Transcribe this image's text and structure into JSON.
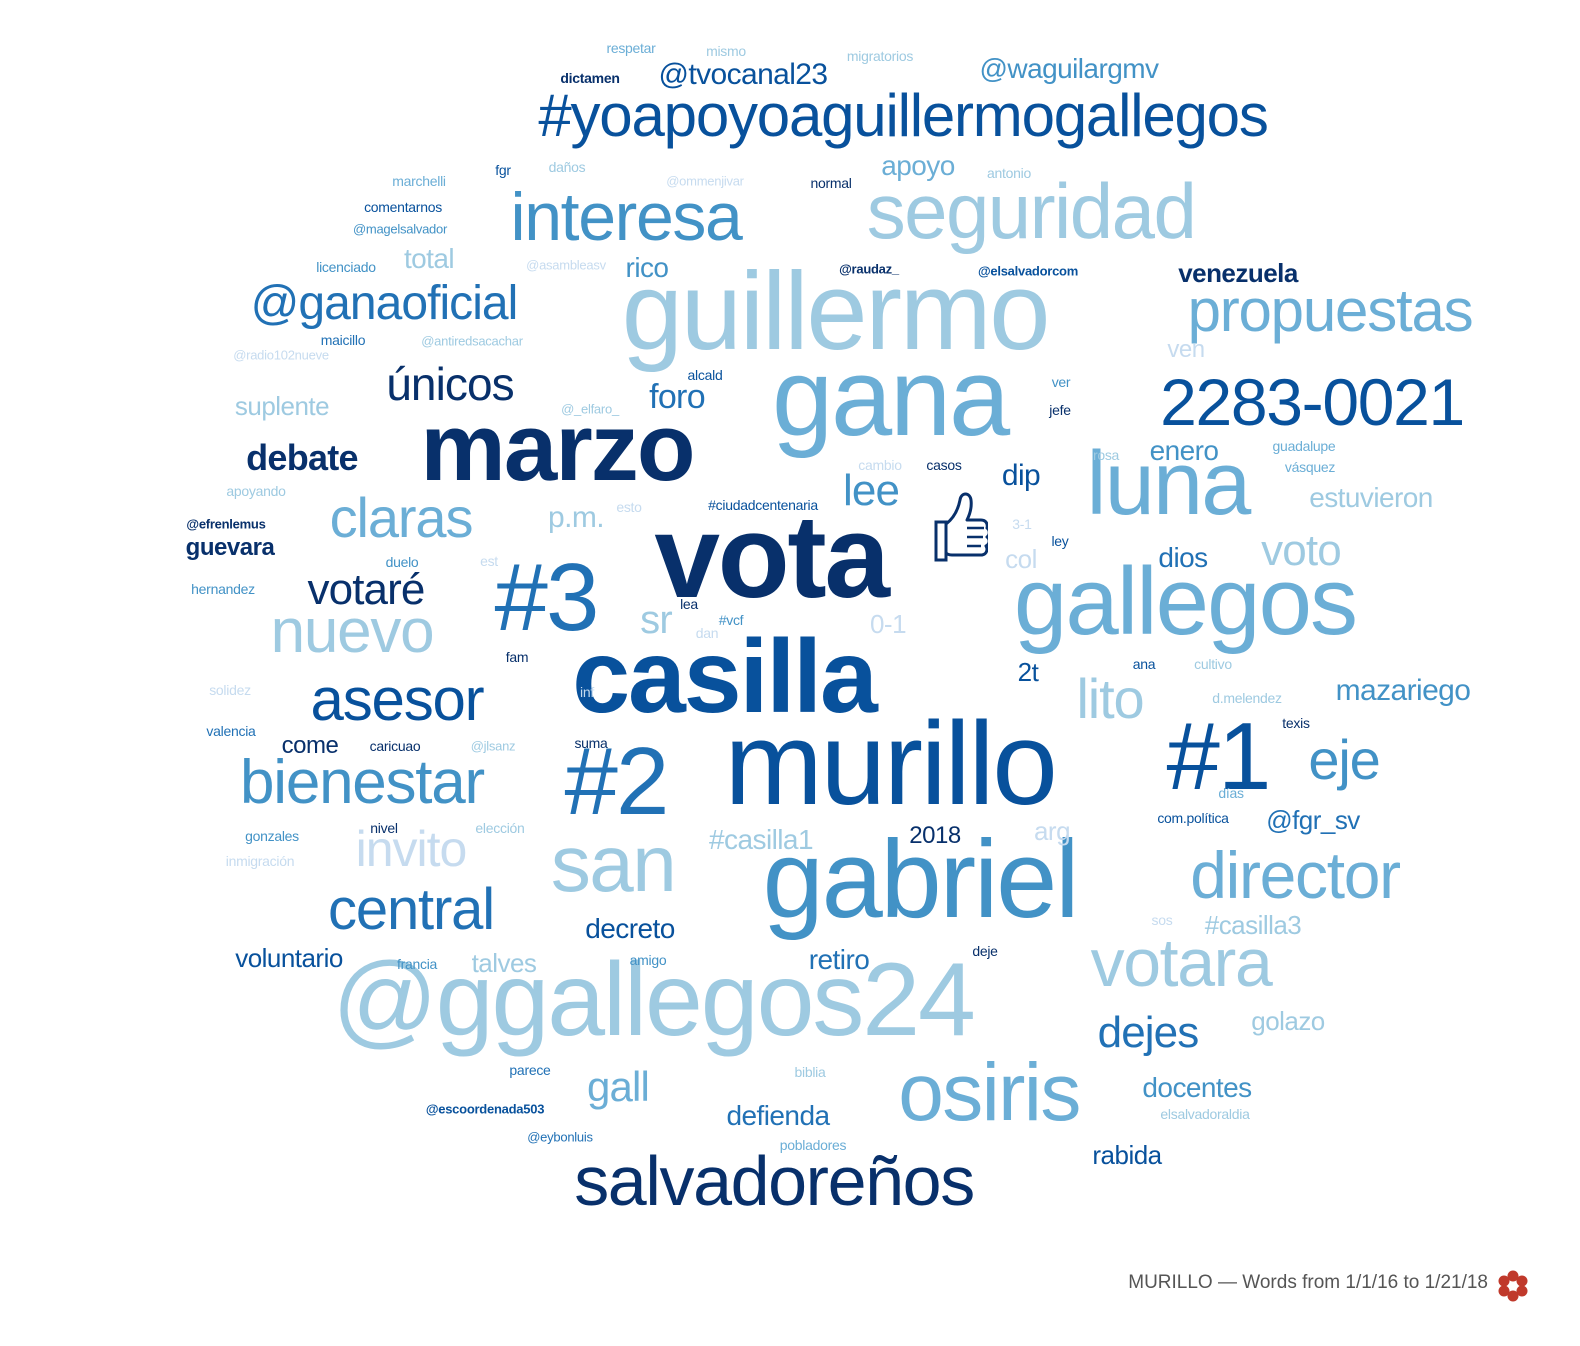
{
  "colors": {
    "c0": "#08306b",
    "c1": "#08519c",
    "c2": "#2171b5",
    "c3": "#4292c6",
    "c4": "#6baed6",
    "c5": "#9ecae1",
    "c6": "#c6dbef"
  },
  "icon": "thumbs-up-icon",
  "footer": {
    "caption": "MURILLO — Words from 1/1/16 to 1/21/18",
    "logo": "flower-logo-icon"
  },
  "words": [
    {
      "text": "#yoapoyoaguillermogallegos",
      "size": 60,
      "color": "c1",
      "weight": "normal"
    },
    {
      "text": "guillermo",
      "size": 110,
      "color": "c5",
      "weight": "normal"
    },
    {
      "text": "gana",
      "size": 110,
      "color": "c4",
      "weight": "normal"
    },
    {
      "text": "marzo",
      "size": 96,
      "color": "c0",
      "weight": "bold"
    },
    {
      "text": "vota",
      "size": 118,
      "color": "c0",
      "weight": "bold"
    },
    {
      "text": "murillo",
      "size": 118,
      "color": "c1",
      "weight": "normal"
    },
    {
      "text": "casilla",
      "size": 104,
      "color": "c1",
      "weight": "bold"
    },
    {
      "text": "gabriel",
      "size": 110,
      "color": "c3",
      "weight": "normal"
    },
    {
      "text": "@ggallegos24",
      "size": 104,
      "color": "c5",
      "weight": "normal"
    },
    {
      "text": "gallegos",
      "size": 96,
      "color": "c4",
      "weight": "normal"
    },
    {
      "text": "luna",
      "size": 90,
      "color": "c4",
      "weight": "normal"
    },
    {
      "text": "#1",
      "size": 96,
      "color": "c1",
      "weight": "normal"
    },
    {
      "text": "#2",
      "size": 96,
      "color": "c2",
      "weight": "normal"
    },
    {
      "text": "#3",
      "size": 96,
      "color": "c2",
      "weight": "normal"
    },
    {
      "text": "seguridad",
      "size": 78,
      "color": "c5",
      "weight": "normal"
    },
    {
      "text": "interesa",
      "size": 68,
      "color": "c3",
      "weight": "normal"
    },
    {
      "text": "2283-0021",
      "size": 66,
      "color": "c1",
      "weight": "normal"
    },
    {
      "text": "propuestas",
      "size": 60,
      "color": "c4",
      "weight": "normal"
    },
    {
      "text": "salvadoreños",
      "size": 70,
      "color": "c0",
      "weight": "normal"
    },
    {
      "text": "osiris",
      "size": 82,
      "color": "c4",
      "weight": "normal"
    },
    {
      "text": "votara",
      "size": 68,
      "color": "c5",
      "weight": "normal"
    },
    {
      "text": "director",
      "size": 66,
      "color": "c4",
      "weight": "normal"
    },
    {
      "text": "san",
      "size": 80,
      "color": "c5",
      "weight": "normal"
    },
    {
      "text": "bienestar",
      "size": 62,
      "color": "c3",
      "weight": "normal"
    },
    {
      "text": "central",
      "size": 58,
      "color": "c2",
      "weight": "normal"
    },
    {
      "text": "asesor",
      "size": 60,
      "color": "c1",
      "weight": "normal"
    },
    {
      "text": "nuevo",
      "size": 62,
      "color": "c5",
      "weight": "normal"
    },
    {
      "text": "claras",
      "size": 56,
      "color": "c4",
      "weight": "normal"
    },
    {
      "text": "@ganaoficial",
      "size": 48,
      "color": "c2",
      "weight": "normal"
    },
    {
      "text": "únicos",
      "size": 46,
      "color": "c0",
      "weight": "normal"
    },
    {
      "text": "votaré",
      "size": 44,
      "color": "c0",
      "weight": "normal"
    },
    {
      "text": "invito",
      "size": 50,
      "color": "c6",
      "weight": "normal"
    },
    {
      "text": "lito",
      "size": 56,
      "color": "c5",
      "weight": "normal"
    },
    {
      "text": "eje",
      "size": 56,
      "color": "c3",
      "weight": "normal"
    },
    {
      "text": "lee",
      "size": 44,
      "color": "c3",
      "weight": "normal"
    },
    {
      "text": "voto",
      "size": 44,
      "color": "c5",
      "weight": "normal"
    },
    {
      "text": "sr",
      "size": 40,
      "color": "c5",
      "weight": "normal"
    },
    {
      "text": "dejes",
      "size": 44,
      "color": "c2",
      "weight": "normal"
    },
    {
      "text": "gall",
      "size": 42,
      "color": "c4",
      "weight": "normal"
    },
    {
      "text": "debate",
      "size": 36,
      "color": "c0",
      "weight": "bold"
    },
    {
      "text": "p.m.",
      "size": 30,
      "color": "c5",
      "weight": "normal"
    },
    {
      "text": "foro",
      "size": 34,
      "color": "c2",
      "weight": "normal"
    },
    {
      "text": "mazariego",
      "size": 30,
      "color": "c3",
      "weight": "normal"
    },
    {
      "text": "@tvocanal23",
      "size": 30,
      "color": "c1",
      "weight": "normal"
    },
    {
      "text": "@waguilargmv",
      "size": 28,
      "color": "c3",
      "weight": "normal"
    },
    {
      "text": "apoyo",
      "size": 28,
      "color": "c4",
      "weight": "normal"
    },
    {
      "text": "total",
      "size": 28,
      "color": "c5",
      "weight": "normal"
    },
    {
      "text": "rico",
      "size": 28,
      "color": "c3",
      "weight": "normal"
    },
    {
      "text": "venezuela",
      "size": 26,
      "color": "c0",
      "weight": "bold"
    },
    {
      "text": "ven",
      "size": 24,
      "color": "c6",
      "weight": "normal"
    },
    {
      "text": "suplente",
      "size": 26,
      "color": "c5",
      "weight": "normal"
    },
    {
      "text": "enero",
      "size": 28,
      "color": "c3",
      "weight": "normal"
    },
    {
      "text": "estuvieron",
      "size": 28,
      "color": "c5",
      "weight": "normal"
    },
    {
      "text": "dip",
      "size": 30,
      "color": "c1",
      "weight": "normal"
    },
    {
      "text": "guevara",
      "size": 24,
      "color": "c0",
      "weight": "bold"
    },
    {
      "text": "col",
      "size": 26,
      "color": "c6",
      "weight": "normal"
    },
    {
      "text": "dios",
      "size": 28,
      "color": "c2",
      "weight": "normal"
    },
    {
      "text": "0-1",
      "size": 26,
      "color": "c6",
      "weight": "normal"
    },
    {
      "text": "2t",
      "size": 26,
      "color": "c1",
      "weight": "normal"
    },
    {
      "text": "come",
      "size": 24,
      "color": "c0",
      "weight": "normal"
    },
    {
      "text": "#casilla1",
      "size": 28,
      "color": "c5",
      "weight": "normal"
    },
    {
      "text": "2018",
      "size": 24,
      "color": "c0",
      "weight": "normal"
    },
    {
      "text": "arg",
      "size": 26,
      "color": "c6",
      "weight": "normal"
    },
    {
      "text": "@fgr_sv",
      "size": 26,
      "color": "c2",
      "weight": "normal"
    },
    {
      "text": "decreto",
      "size": 28,
      "color": "c1",
      "weight": "normal"
    },
    {
      "text": "voluntario",
      "size": 26,
      "color": "c1",
      "weight": "normal"
    },
    {
      "text": "talves",
      "size": 26,
      "color": "c5",
      "weight": "normal"
    },
    {
      "text": "retiro",
      "size": 28,
      "color": "c2",
      "weight": "normal"
    },
    {
      "text": "#casilla3",
      "size": 26,
      "color": "c5",
      "weight": "normal"
    },
    {
      "text": "golazo",
      "size": 26,
      "color": "c5",
      "weight": "normal"
    },
    {
      "text": "docentes",
      "size": 28,
      "color": "c3",
      "weight": "normal"
    },
    {
      "text": "defienda",
      "size": 28,
      "color": "c2",
      "weight": "normal"
    },
    {
      "text": "rabida",
      "size": 26,
      "color": "c1",
      "weight": "normal"
    },
    {
      "text": "respetar",
      "size": 14,
      "color": "c4",
      "weight": "normal"
    },
    {
      "text": "mismo",
      "size": 14,
      "color": "c5",
      "weight": "normal"
    },
    {
      "text": "migratorios",
      "size": 14,
      "color": "c5",
      "weight": "normal"
    },
    {
      "text": "dictamen",
      "size": 14,
      "color": "c0",
      "weight": "bold"
    },
    {
      "text": "fgr",
      "size": 14,
      "color": "c1",
      "weight": "normal"
    },
    {
      "text": "daños",
      "size": 14,
      "color": "c5",
      "weight": "normal"
    },
    {
      "text": "marchelli",
      "size": 14,
      "color": "c4",
      "weight": "normal"
    },
    {
      "text": "@ommenjivar",
      "size": 13,
      "color": "c6",
      "weight": "normal"
    },
    {
      "text": "normal",
      "size": 14,
      "color": "c0",
      "weight": "normal"
    },
    {
      "text": "antonio",
      "size": 14,
      "color": "c5",
      "weight": "normal"
    },
    {
      "text": "comentarnos",
      "size": 14,
      "color": "c1",
      "weight": "normal"
    },
    {
      "text": "@magelsalvador",
      "size": 13,
      "color": "c3",
      "weight": "normal"
    },
    {
      "text": "licenciado",
      "size": 14,
      "color": "c3",
      "weight": "normal"
    },
    {
      "text": "@asambleasv",
      "size": 13,
      "color": "c6",
      "weight": "normal"
    },
    {
      "text": "@raudaz_",
      "size": 13,
      "color": "c0",
      "weight": "bold"
    },
    {
      "text": "@elsalvadorcom",
      "size": 13,
      "color": "c1",
      "weight": "bold"
    },
    {
      "text": "maicillo",
      "size": 14,
      "color": "c2",
      "weight": "normal"
    },
    {
      "text": "@antiredsacachar",
      "size": 13,
      "color": "c5",
      "weight": "normal"
    },
    {
      "text": "@radio102nueve",
      "size": 13,
      "color": "c6",
      "weight": "normal"
    },
    {
      "text": "alcald",
      "size": 14,
      "color": "c1",
      "weight": "normal"
    },
    {
      "text": "@_elfaro_",
      "size": 13,
      "color": "c5",
      "weight": "normal"
    },
    {
      "text": "ver",
      "size": 14,
      "color": "c3",
      "weight": "normal"
    },
    {
      "text": "jefe",
      "size": 14,
      "color": "c0",
      "weight": "normal"
    },
    {
      "text": "guadalupe",
      "size": 14,
      "color": "c4",
      "weight": "normal"
    },
    {
      "text": "rosa",
      "size": 14,
      "color": "c5",
      "weight": "normal"
    },
    {
      "text": "vásquez",
      "size": 14,
      "color": "c4",
      "weight": "normal"
    },
    {
      "text": "cambio",
      "size": 14,
      "color": "c6",
      "weight": "normal"
    },
    {
      "text": "casos",
      "size": 14,
      "color": "c0",
      "weight": "normal"
    },
    {
      "text": "apoyando",
      "size": 14,
      "color": "c5",
      "weight": "normal"
    },
    {
      "text": "@efrenlemus",
      "size": 13,
      "color": "c0",
      "weight": "bold"
    },
    {
      "text": "esto",
      "size": 14,
      "color": "c6",
      "weight": "normal"
    },
    {
      "text": "#ciudadcentenaria",
      "size": 14,
      "color": "c1",
      "weight": "normal"
    },
    {
      "text": "3-1",
      "size": 14,
      "color": "c6",
      "weight": "normal"
    },
    {
      "text": "ley",
      "size": 14,
      "color": "c1",
      "weight": "normal"
    },
    {
      "text": "duelo",
      "size": 14,
      "color": "c3",
      "weight": "normal"
    },
    {
      "text": "est",
      "size": 14,
      "color": "c6",
      "weight": "normal"
    },
    {
      "text": "hernandez",
      "size": 14,
      "color": "c3",
      "weight": "normal"
    },
    {
      "text": "lea",
      "size": 14,
      "color": "c0",
      "weight": "normal"
    },
    {
      "text": "#vcf",
      "size": 14,
      "color": "c3",
      "weight": "normal"
    },
    {
      "text": "dan",
      "size": 14,
      "color": "c6",
      "weight": "normal"
    },
    {
      "text": "fam",
      "size": 14,
      "color": "c0",
      "weight": "normal"
    },
    {
      "text": "ana",
      "size": 14,
      "color": "c1",
      "weight": "normal"
    },
    {
      "text": "cultivo",
      "size": 14,
      "color": "c5",
      "weight": "normal"
    },
    {
      "text": "solidez",
      "size": 14,
      "color": "c6",
      "weight": "normal"
    },
    {
      "text": "inf",
      "size": 14,
      "color": "c6",
      "weight": "normal"
    },
    {
      "text": "d.melendez",
      "size": 14,
      "color": "c5",
      "weight": "normal"
    },
    {
      "text": "valencia",
      "size": 14,
      "color": "c2",
      "weight": "normal"
    },
    {
      "text": "texis",
      "size": 14,
      "color": "c0",
      "weight": "normal"
    },
    {
      "text": "caricuao",
      "size": 14,
      "color": "c0",
      "weight": "normal"
    },
    {
      "text": "@jlsanz",
      "size": 13,
      "color": "c5",
      "weight": "normal"
    },
    {
      "text": "suma",
      "size": 14,
      "color": "c0",
      "weight": "normal"
    },
    {
      "text": "días",
      "size": 14,
      "color": "c4",
      "weight": "normal"
    },
    {
      "text": "gonzales",
      "size": 14,
      "color": "c3",
      "weight": "normal"
    },
    {
      "text": "nivel",
      "size": 14,
      "color": "c0",
      "weight": "normal"
    },
    {
      "text": "elección",
      "size": 14,
      "color": "c5",
      "weight": "normal"
    },
    {
      "text": "com.política",
      "size": 14,
      "color": "c1",
      "weight": "normal"
    },
    {
      "text": "inmigración",
      "size": 14,
      "color": "c6",
      "weight": "normal"
    },
    {
      "text": "sos",
      "size": 14,
      "color": "c6",
      "weight": "normal"
    },
    {
      "text": "deje",
      "size": 14,
      "color": "c0",
      "weight": "normal"
    },
    {
      "text": "francia",
      "size": 14,
      "color": "c3",
      "weight": "normal"
    },
    {
      "text": "amigo",
      "size": 14,
      "color": "c3",
      "weight": "normal"
    },
    {
      "text": "parece",
      "size": 14,
      "color": "c2",
      "weight": "normal"
    },
    {
      "text": "biblia",
      "size": 14,
      "color": "c5",
      "weight": "normal"
    },
    {
      "text": "@escoordenada503",
      "size": 13,
      "color": "c1",
      "weight": "bold"
    },
    {
      "text": "elsalvadoraldia",
      "size": 14,
      "color": "c5",
      "weight": "normal"
    },
    {
      "text": "@eybonluis",
      "size": 13,
      "color": "c2",
      "weight": "normal"
    },
    {
      "text": "pobladores",
      "size": 14,
      "color": "c4",
      "weight": "normal"
    }
  ]
}
